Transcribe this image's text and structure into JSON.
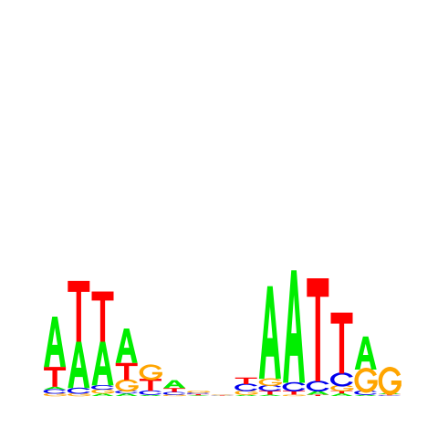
{
  "colors": {
    "A": "#00ee00",
    "C": "#0000ee",
    "G": "#ffa500",
    "T": "#ff0000"
  },
  "chart_data": {
    "type": "sequence_logo",
    "alphabet": [
      "A",
      "C",
      "G",
      "T"
    ],
    "ylim": [
      0,
      2
    ],
    "positions": [
      [
        [
          "G",
          0.02
        ],
        [
          "C",
          0.03
        ],
        [
          "A",
          0.02
        ],
        [
          "T",
          0.15
        ],
        [
          "A",
          0.38
        ]
      ],
      [
        [
          "G",
          0.02
        ],
        [
          "C",
          0.04
        ],
        [
          "A",
          0.35
        ],
        [
          "T",
          0.46
        ]
      ],
      [
        [
          "A",
          0.02
        ],
        [
          "G",
          0.03
        ],
        [
          "C",
          0.03
        ],
        [
          "A",
          0.33
        ],
        [
          "T",
          0.38
        ]
      ],
      [
        [
          "A",
          0.02
        ],
        [
          "C",
          0.02
        ],
        [
          "G",
          0.08
        ],
        [
          "T",
          0.13
        ],
        [
          "A",
          0.26
        ]
      ],
      [
        [
          "A",
          0.01
        ],
        [
          "C",
          0.03
        ],
        [
          "T",
          0.09
        ],
        [
          "G",
          0.1
        ]
      ],
      [
        [
          "G",
          0.01
        ],
        [
          "C",
          0.02
        ],
        [
          "T",
          0.03
        ],
        [
          "A",
          0.06
        ]
      ],
      [
        [
          "A",
          0.005
        ],
        [
          "T",
          0.01
        ],
        [
          "C",
          0.01
        ],
        [
          "G",
          0.015
        ]
      ],
      [
        [
          "A",
          0.002
        ],
        [
          "T",
          0.003
        ],
        [
          "C",
          0.003
        ],
        [
          "G",
          0.003
        ]
      ],
      [
        [
          "A",
          0.01
        ],
        [
          "G",
          0.03
        ],
        [
          "C",
          0.05
        ],
        [
          "T",
          0.05
        ]
      ],
      [
        [
          "A",
          0.01
        ],
        [
          "T",
          0.03
        ],
        [
          "C",
          0.04
        ],
        [
          "G",
          0.05
        ],
        [
          "A",
          0.7
        ]
      ],
      [
        [
          "G",
          0.01
        ],
        [
          "T",
          0.03
        ],
        [
          "C",
          0.06
        ],
        [
          "A",
          0.85
        ]
      ],
      [
        [
          "T",
          0.01
        ],
        [
          "A",
          0.03
        ],
        [
          "C",
          0.07
        ],
        [
          "T",
          0.78
        ]
      ],
      [
        [
          "A",
          0.02
        ],
        [
          "T",
          0.02
        ],
        [
          "G",
          0.04
        ],
        [
          "C",
          0.09
        ],
        [
          "T",
          0.46
        ]
      ],
      [
        [
          "A",
          0.01
        ],
        [
          "C",
          0.03
        ],
        [
          "G",
          0.16
        ],
        [
          "A",
          0.25
        ]
      ],
      [
        [
          "C",
          0.005
        ],
        [
          "T",
          0.01
        ],
        [
          "A",
          0.01
        ],
        [
          "G",
          0.18
        ]
      ]
    ]
  }
}
